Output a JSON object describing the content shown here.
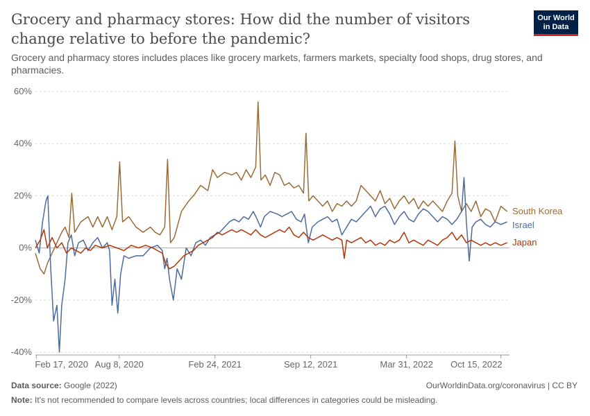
{
  "header": {
    "title": "Grocery and pharmacy stores: How did the number of visitors change relative to before the pandemic?",
    "subtitle": "Grocery and pharmacy stores includes places like grocery markets, farmers markets, specialty food shops, drug stores, and pharmacies."
  },
  "logo": {
    "line1": "Our World",
    "line2": "in Data"
  },
  "footer": {
    "source_label": "Data source:",
    "source_value": "Google (2022)",
    "url": "OurWorldinData.org/coronavirus | CC BY",
    "note_label": "Note:",
    "note_value": "It's not recommended to compare levels across countries; local differences in categories could be misleading."
  },
  "colors": {
    "south_korea": "#9a6b37",
    "israel": "#4c6a9c",
    "japan": "#b13507",
    "grid": "#dddddd",
    "zero": "#aaaaaa"
  },
  "chart_data": {
    "type": "line",
    "ylim": [
      -40,
      60
    ],
    "yticks": [
      -40,
      -20,
      0,
      20,
      40,
      60
    ],
    "ytick_labels": [
      "-40%",
      "-20%",
      "0%",
      "20%",
      "40%",
      "60%"
    ],
    "xlim": [
      0,
      990
    ],
    "x_unit": "days since Feb 15, 2020",
    "xticks": [
      2,
      175,
      375,
      575,
      775,
      972
    ],
    "xtick_labels": [
      "Feb 17, 2020",
      "Aug 8, 2020",
      "Feb 24, 2021",
      "Sep 12, 2021",
      "Mar 31, 2022",
      "Oct 15, 2022"
    ],
    "series": [
      {
        "name": "South Korea",
        "color_key": "south_korea",
        "points": [
          [
            0,
            -2
          ],
          [
            10,
            -8
          ],
          [
            18,
            -10
          ],
          [
            25,
            -6
          ],
          [
            35,
            -2
          ],
          [
            45,
            2
          ],
          [
            55,
            6
          ],
          [
            62,
            8
          ],
          [
            70,
            4
          ],
          [
            76,
            21
          ],
          [
            82,
            6
          ],
          [
            95,
            10
          ],
          [
            110,
            12
          ],
          [
            120,
            8
          ],
          [
            130,
            12
          ],
          [
            140,
            8
          ],
          [
            150,
            12
          ],
          [
            160,
            7
          ],
          [
            170,
            12
          ],
          [
            176,
            33
          ],
          [
            182,
            10
          ],
          [
            195,
            12
          ],
          [
            210,
            8
          ],
          [
            225,
            6
          ],
          [
            240,
            8
          ],
          [
            250,
            6
          ],
          [
            260,
            5
          ],
          [
            270,
            8
          ],
          [
            276,
            34
          ],
          [
            282,
            2
          ],
          [
            290,
            4
          ],
          [
            305,
            14
          ],
          [
            320,
            18
          ],
          [
            330,
            20
          ],
          [
            345,
            24
          ],
          [
            360,
            22
          ],
          [
            370,
            30
          ],
          [
            380,
            27
          ],
          [
            395,
            29
          ],
          [
            410,
            28
          ],
          [
            420,
            29
          ],
          [
            430,
            26
          ],
          [
            440,
            30
          ],
          [
            450,
            27
          ],
          [
            460,
            31
          ],
          [
            465,
            56
          ],
          [
            471,
            26
          ],
          [
            480,
            28
          ],
          [
            490,
            24
          ],
          [
            500,
            29
          ],
          [
            510,
            28
          ],
          [
            520,
            24
          ],
          [
            530,
            25
          ],
          [
            540,
            23
          ],
          [
            550,
            24
          ],
          [
            560,
            21
          ],
          [
            565,
            44
          ],
          [
            571,
            18
          ],
          [
            580,
            20
          ],
          [
            590,
            18
          ],
          [
            600,
            16
          ],
          [
            610,
            18
          ],
          [
            620,
            14
          ],
          [
            630,
            17
          ],
          [
            640,
            16
          ],
          [
            650,
            18
          ],
          [
            660,
            16
          ],
          [
            670,
            18
          ],
          [
            680,
            24
          ],
          [
            690,
            22
          ],
          [
            700,
            20
          ],
          [
            710,
            18
          ],
          [
            720,
            22
          ],
          [
            730,
            17
          ],
          [
            740,
            19
          ],
          [
            750,
            15
          ],
          [
            760,
            18
          ],
          [
            770,
            20
          ],
          [
            780,
            17
          ],
          [
            790,
            19
          ],
          [
            800,
            15
          ],
          [
            810,
            18
          ],
          [
            820,
            16
          ],
          [
            830,
            18
          ],
          [
            840,
            16
          ],
          [
            850,
            14
          ],
          [
            860,
            18
          ],
          [
            870,
            21
          ],
          [
            876,
            41
          ],
          [
            882,
            20
          ],
          [
            890,
            14
          ],
          [
            900,
            17
          ],
          [
            910,
            14
          ],
          [
            920,
            18
          ],
          [
            930,
            12
          ],
          [
            940,
            15
          ],
          [
            950,
            14
          ],
          [
            960,
            10
          ],
          [
            972,
            16
          ],
          [
            985,
            14
          ]
        ]
      },
      {
        "name": "Israel",
        "color_key": "israel",
        "points": [
          [
            0,
            3
          ],
          [
            8,
            -2
          ],
          [
            15,
            10
          ],
          [
            22,
            18
          ],
          [
            26,
            20
          ],
          [
            32,
            -8
          ],
          [
            38,
            -28
          ],
          [
            45,
            -22
          ],
          [
            50,
            -40
          ],
          [
            55,
            -22
          ],
          [
            62,
            -12
          ],
          [
            68,
            2
          ],
          [
            75,
            5
          ],
          [
            82,
            -3
          ],
          [
            90,
            2
          ],
          [
            100,
            3
          ],
          [
            110,
            -1
          ],
          [
            120,
            2
          ],
          [
            130,
            4
          ],
          [
            140,
            0
          ],
          [
            150,
            2
          ],
          [
            155,
            -1
          ],
          [
            160,
            -22
          ],
          [
            166,
            -12
          ],
          [
            172,
            -25
          ],
          [
            178,
            -10
          ],
          [
            185,
            -3
          ],
          [
            195,
            -4
          ],
          [
            210,
            -3
          ],
          [
            225,
            -3
          ],
          [
            240,
            0
          ],
          [
            255,
            1
          ],
          [
            265,
            -1
          ],
          [
            270,
            -8
          ],
          [
            275,
            -4
          ],
          [
            280,
            -12
          ],
          [
            288,
            -20
          ],
          [
            296,
            -8
          ],
          [
            305,
            -12
          ],
          [
            315,
            0
          ],
          [
            325,
            -3
          ],
          [
            335,
            2
          ],
          [
            345,
            3
          ],
          [
            355,
            1
          ],
          [
            365,
            4
          ],
          [
            375,
            5
          ],
          [
            385,
            6
          ],
          [
            395,
            8
          ],
          [
            405,
            10
          ],
          [
            415,
            11
          ],
          [
            425,
            10
          ],
          [
            435,
            12
          ],
          [
            445,
            11
          ],
          [
            455,
            14
          ],
          [
            463,
            11
          ],
          [
            470,
            8
          ],
          [
            478,
            12
          ],
          [
            490,
            14
          ],
          [
            505,
            13
          ],
          [
            515,
            12
          ],
          [
            525,
            13
          ],
          [
            535,
            14
          ],
          [
            545,
            11
          ],
          [
            555,
            10
          ],
          [
            562,
            13
          ],
          [
            570,
            2
          ],
          [
            578,
            8
          ],
          [
            590,
            10
          ],
          [
            600,
            11
          ],
          [
            610,
            12
          ],
          [
            620,
            10
          ],
          [
            630,
            11
          ],
          [
            640,
            5
          ],
          [
            650,
            8
          ],
          [
            660,
            11
          ],
          [
            670,
            10
          ],
          [
            680,
            12
          ],
          [
            690,
            14
          ],
          [
            700,
            16
          ],
          [
            710,
            12
          ],
          [
            720,
            15
          ],
          [
            730,
            16
          ],
          [
            740,
            13
          ],
          [
            750,
            9
          ],
          [
            760,
            12
          ],
          [
            770,
            14
          ],
          [
            780,
            11
          ],
          [
            790,
            10
          ],
          [
            800,
            13
          ],
          [
            810,
            15
          ],
          [
            820,
            14
          ],
          [
            830,
            12
          ],
          [
            840,
            10
          ],
          [
            850,
            12
          ],
          [
            860,
            11
          ],
          [
            870,
            9
          ],
          [
            880,
            11
          ],
          [
            890,
            14
          ],
          [
            895,
            27
          ],
          [
            900,
            10
          ],
          [
            906,
            -5
          ],
          [
            912,
            8
          ],
          [
            920,
            10
          ],
          [
            930,
            11
          ],
          [
            940,
            9
          ],
          [
            950,
            8
          ],
          [
            960,
            10
          ],
          [
            972,
            9
          ],
          [
            985,
            10
          ]
        ]
      },
      {
        "name": "Japan",
        "color_key": "japan",
        "points": [
          [
            0,
            0
          ],
          [
            10,
            3
          ],
          [
            18,
            7
          ],
          [
            25,
            0
          ],
          [
            35,
            4
          ],
          [
            45,
            0
          ],
          [
            55,
            2
          ],
          [
            65,
            -2
          ],
          [
            75,
            0
          ],
          [
            85,
            -1
          ],
          [
            95,
            -2
          ],
          [
            105,
            0
          ],
          [
            115,
            -1
          ],
          [
            125,
            1
          ],
          [
            140,
            0
          ],
          [
            155,
            1
          ],
          [
            170,
            0
          ],
          [
            185,
            -1
          ],
          [
            200,
            1
          ],
          [
            215,
            0
          ],
          [
            230,
            1
          ],
          [
            245,
            0
          ],
          [
            255,
            -1
          ],
          [
            265,
            -2
          ],
          [
            272,
            -6
          ],
          [
            280,
            -8
          ],
          [
            290,
            -7
          ],
          [
            300,
            -5
          ],
          [
            310,
            -3
          ],
          [
            320,
            -2
          ],
          [
            330,
            -1
          ],
          [
            340,
            1
          ],
          [
            350,
            2
          ],
          [
            360,
            3
          ],
          [
            370,
            4
          ],
          [
            380,
            6
          ],
          [
            390,
            5
          ],
          [
            400,
            6
          ],
          [
            410,
            7
          ],
          [
            420,
            6
          ],
          [
            430,
            7
          ],
          [
            440,
            6
          ],
          [
            450,
            5
          ],
          [
            460,
            7
          ],
          [
            470,
            5
          ],
          [
            480,
            4
          ],
          [
            490,
            5
          ],
          [
            500,
            6
          ],
          [
            510,
            7
          ],
          [
            520,
            6
          ],
          [
            530,
            8
          ],
          [
            540,
            5
          ],
          [
            550,
            4
          ],
          [
            560,
            6
          ],
          [
            570,
            4
          ],
          [
            580,
            3
          ],
          [
            590,
            4
          ],
          [
            600,
            5
          ],
          [
            610,
            4
          ],
          [
            620,
            3
          ],
          [
            630,
            4
          ],
          [
            640,
            3
          ],
          [
            645,
            -4
          ],
          [
            650,
            3
          ],
          [
            660,
            2
          ],
          [
            670,
            3
          ],
          [
            680,
            4
          ],
          [
            690,
            2
          ],
          [
            700,
            3
          ],
          [
            710,
            1
          ],
          [
            720,
            2
          ],
          [
            730,
            1
          ],
          [
            740,
            3
          ],
          [
            750,
            2
          ],
          [
            760,
            3
          ],
          [
            770,
            6
          ],
          [
            780,
            2
          ],
          [
            790,
            3
          ],
          [
            800,
            2
          ],
          [
            810,
            1
          ],
          [
            820,
            3
          ],
          [
            830,
            2
          ],
          [
            840,
            1
          ],
          [
            850,
            3
          ],
          [
            860,
            4
          ],
          [
            870,
            6
          ],
          [
            880,
            3
          ],
          [
            890,
            5
          ],
          [
            900,
            2
          ],
          [
            910,
            3
          ],
          [
            920,
            2
          ],
          [
            930,
            1
          ],
          [
            940,
            2
          ],
          [
            950,
            1
          ],
          [
            960,
            2
          ],
          [
            972,
            1
          ],
          [
            985,
            2
          ]
        ]
      }
    ]
  }
}
